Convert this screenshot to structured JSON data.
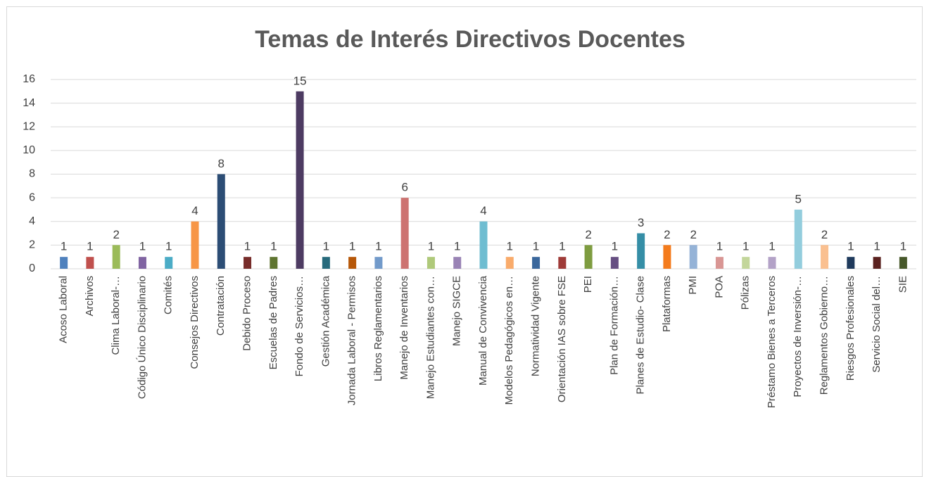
{
  "chart_data": {
    "type": "bar",
    "title": "Temas de Interés Directivos Docentes",
    "categories": [
      "Acoso Laboral",
      "Archivos",
      "Clima Laboral-…",
      "Código Único Disciplinario",
      "Comités",
      "Consejos Directivos",
      "Contratación",
      "Debido Proceso",
      "Escuelas de Padres",
      "Fondo de Servicios…",
      "Gestión Académica",
      "Jornada Laboral - Permisos",
      "Libros Reglamentarios",
      "Manejo de Inventarios",
      "Manejo Estudiantes con…",
      "Manejo SIGCE",
      "Manual de Convivencia",
      "Modelos Pedagógicos en…",
      "Normatividad Vigente",
      "Orientación IAS sobre FSE",
      "PEI",
      "Plan de Formación…",
      "Planes de Estudio- Clase",
      "Plataformas",
      "PMI",
      "POA",
      "Pólizas",
      "Préstamo Bienes a Terceros",
      "Proyectos de Inversión-…",
      "Reglamentos Gobierno…",
      "Riesgos Profesionales",
      "Servicio Social del…",
      "SIE"
    ],
    "values": [
      1,
      1,
      2,
      1,
      1,
      4,
      8,
      1,
      1,
      15,
      1,
      1,
      1,
      6,
      1,
      1,
      4,
      1,
      1,
      1,
      2,
      1,
      3,
      2,
      2,
      1,
      1,
      1,
      5,
      2,
      1,
      1,
      1
    ],
    "colors": [
      "#4f81bd",
      "#c0504d",
      "#9bbb59",
      "#8064a2",
      "#4bacc6",
      "#f79646",
      "#2c4d75",
      "#772c2a",
      "#5f7530",
      "#4d3b62",
      "#276a7c",
      "#b65708",
      "#729aca",
      "#cd7371",
      "#afc97a",
      "#9983b5",
      "#6fbdd1",
      "#f9ab6b",
      "#3a679c",
      "#9f3b38",
      "#7e9c40",
      "#664f82",
      "#358ea6",
      "#f47b1c",
      "#95b3d7",
      "#d99694",
      "#c3d69b",
      "#b3a2c7",
      "#93cddd",
      "#fac090",
      "#1f3a5c",
      "#5a211f",
      "#47582a"
    ],
    "ylim": [
      0,
      16
    ],
    "yticks": [
      0,
      2,
      4,
      6,
      8,
      10,
      12,
      14,
      16
    ],
    "grid": true
  }
}
